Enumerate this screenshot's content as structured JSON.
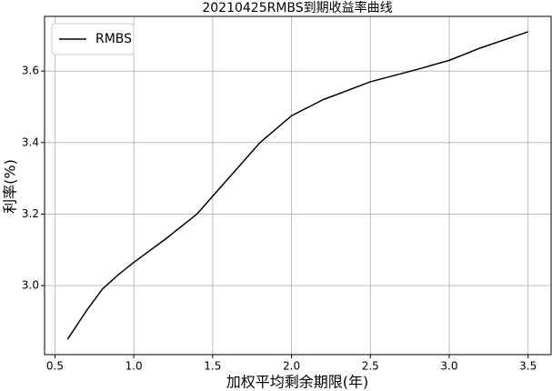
{
  "chart_data": {
    "type": "line",
    "title": "20210425RMBS到期收益率曲线",
    "x_label": "加权平均剩余期限(年)",
    "y_label": "利率(%)",
    "x": [
      0.58,
      0.7,
      0.8,
      0.9,
      1.0,
      1.2,
      1.4,
      1.5,
      1.6,
      1.8,
      2.0,
      2.2,
      2.5,
      2.8,
      3.0,
      3.2,
      3.5
    ],
    "series": [
      {
        "name": "RMBS",
        "color": "#000000",
        "values": [
          2.85,
          2.93,
          2.99,
          3.03,
          3.065,
          3.13,
          3.2,
          3.25,
          3.3,
          3.4,
          3.475,
          3.52,
          3.57,
          3.605,
          3.63,
          3.665,
          3.71
        ]
      }
    ],
    "xlim": [
      0.434,
      3.646
    ],
    "ylim": [
      2.807,
      3.753
    ],
    "xticks": [
      0.5,
      {
        "value": 1.0,
        "label": "1.0"
      },
      1.5,
      {
        "value": 2.0,
        "label": "2.0"
      },
      2.5,
      {
        "value": 3.0,
        "label": "3.0"
      },
      3.5
    ],
    "yticks": [
      {
        "value": 3.0,
        "label": "3.0"
      },
      3.2,
      3.4,
      3.6
    ],
    "grid": true,
    "legend": "upper-left"
  }
}
